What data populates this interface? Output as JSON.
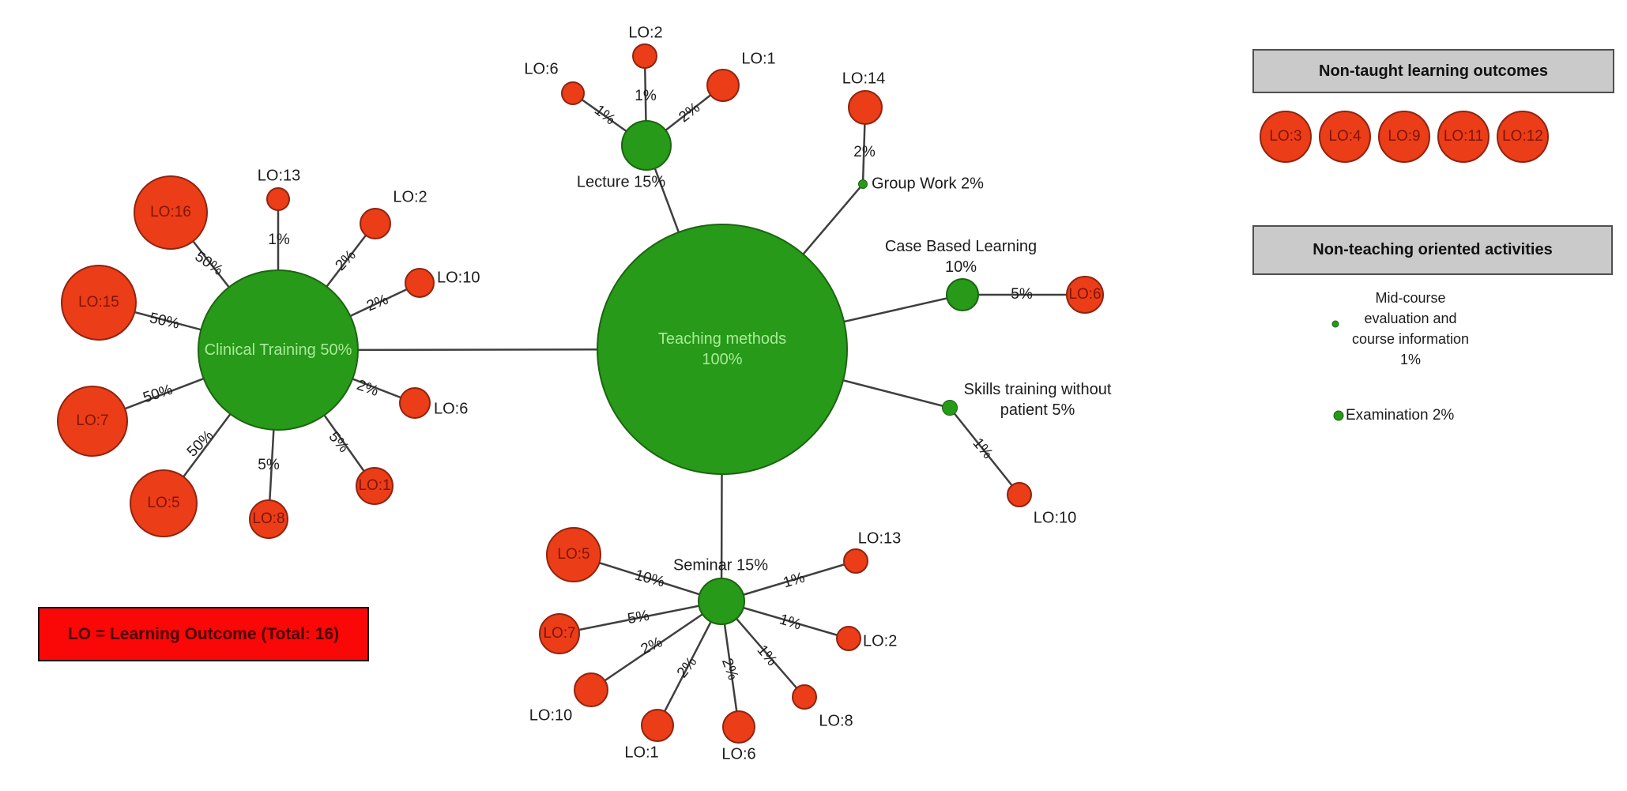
{
  "root": {
    "line1": "Teaching methods",
    "line2": "100%"
  },
  "clinical": {
    "label": "Clinical Training 50%",
    "satellites": [
      {
        "id": "LO:16",
        "pct": "50%"
      },
      {
        "id": "LO:13",
        "pct": "1%"
      },
      {
        "id": "LO:2",
        "pct": "2%"
      },
      {
        "id": "LO:10",
        "pct": "2%"
      },
      {
        "id": "LO:6",
        "pct": "2%"
      },
      {
        "id": "LO:1",
        "pct": "5%"
      },
      {
        "id": "LO:8",
        "pct": "5%"
      },
      {
        "id": "LO:5",
        "pct": "50%"
      },
      {
        "id": "LO:7",
        "pct": "50%"
      },
      {
        "id": "LO:15",
        "pct": "50%"
      }
    ]
  },
  "lecture": {
    "label": "Lecture 15%",
    "satellites": [
      {
        "id": "LO:6",
        "pct": "1%"
      },
      {
        "id": "LO:2",
        "pct": "1%"
      },
      {
        "id": "LO:1",
        "pct": "2%"
      }
    ]
  },
  "group_work": {
    "label": "Group Work 2%",
    "satellites": [
      {
        "id": "LO:14",
        "pct": "2%"
      }
    ]
  },
  "case_based": {
    "label_line1": "Case Based Learning",
    "label_line2": "10%",
    "satellites": [
      {
        "id": "LO:6",
        "pct": "5%"
      }
    ]
  },
  "skills": {
    "label_line1": "Skills training without",
    "label_line2": "patient 5%",
    "satellites": [
      {
        "id": "LO:10",
        "pct": "1%"
      }
    ]
  },
  "seminar": {
    "label": "Seminar 15%",
    "satellites": [
      {
        "id": "LO:5",
        "pct": "10%"
      },
      {
        "id": "LO:7",
        "pct": "5%"
      },
      {
        "id": "LO:10",
        "pct": "2%"
      },
      {
        "id": "LO:1",
        "pct": "2%"
      },
      {
        "id": "LO:6",
        "pct": "2%"
      },
      {
        "id": "LO:8",
        "pct": "1%"
      },
      {
        "id": "LO:2",
        "pct": "1%"
      },
      {
        "id": "LO:13",
        "pct": "1%"
      }
    ]
  },
  "legend": {
    "non_taught": {
      "title": "Non-taught learning outcomes",
      "items": [
        "LO:3",
        "LO:4",
        "LO:9",
        "LO:11",
        "LO:12"
      ]
    },
    "non_teaching": {
      "title": "Non-teaching oriented activities",
      "mid_course": {
        "line1": "Mid-course",
        "line2": "evaluation and",
        "line3": "course information",
        "line4": "1%"
      },
      "examination": "Examination 2%"
    }
  },
  "note": {
    "text": "LO = Learning Outcome (Total: 16)"
  },
  "colors": {
    "taught_green": "#279a19",
    "outcome_red": "#eb3d17",
    "node_text_green": "#a9ea97",
    "node_text_red": "#801409",
    "legend_header_gray": "#cacaca",
    "note_red": "#fa0707"
  }
}
